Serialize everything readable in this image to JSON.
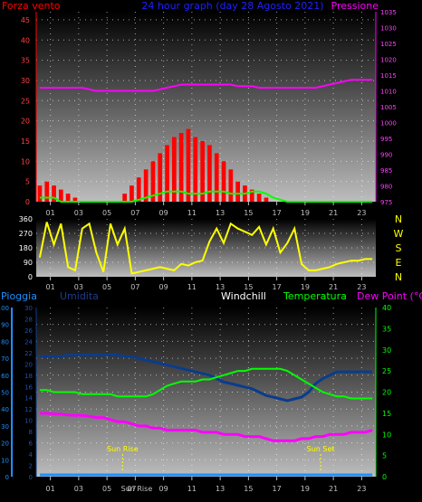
{
  "chart_data": [
    {
      "type": "line",
      "title": "24 hour graph (day  28 Agosto 2021)",
      "left_label": "Forza vento",
      "right_label": "Pressione",
      "x_ticks": [
        "01",
        "03",
        "05",
        "07",
        "09",
        "11",
        "13",
        "15",
        "17",
        "19",
        "21",
        "23"
      ],
      "y_left_ticks": [
        "0",
        "5",
        "10",
        "15",
        "20",
        "25",
        "30",
        "35",
        "40",
        "45"
      ],
      "y_right_ticks": [
        "975",
        "980",
        "985",
        "990",
        "995",
        "1000",
        "1005",
        "1010",
        "1015",
        "1020",
        "1025",
        "1030",
        "1035"
      ],
      "ylim_left": [
        0,
        47
      ],
      "ylim_right": [
        975,
        1035
      ],
      "grid": true,
      "colors": {
        "wind": "#ff0000",
        "gust": "#00ff00",
        "pressure": "#ff00ff",
        "title": "#2020ff"
      },
      "series": [
        {
          "values": [
            4,
            5,
            4,
            3,
            2,
            1,
            0,
            0,
            0,
            0,
            0,
            0,
            2,
            4,
            6,
            8,
            10,
            12,
            14,
            16,
            17,
            18,
            16,
            15,
            14,
            12,
            10,
            8,
            5,
            4,
            3,
            2,
            1,
            0,
            0,
            0,
            0,
            0,
            0,
            0,
            0,
            0,
            0,
            0,
            0,
            0,
            0,
            0
          ]
        },
        {
          "values": [
            1,
            1,
            1,
            0,
            0,
            0,
            0,
            0,
            0,
            0,
            0,
            0,
            0,
            0,
            0.5,
            1,
            1.5,
            2,
            2.5,
            2.5,
            2.5,
            2,
            2,
            2,
            2.5,
            2.5,
            2.5,
            2,
            2,
            2,
            2.5,
            2.5,
            2,
            1,
            0.5,
            0,
            0,
            0,
            0,
            0,
            0,
            0,
            0,
            0,
            0,
            0,
            0,
            0
          ]
        },
        {
          "values": [
            1011,
            1011,
            1011,
            1011,
            1011,
            1011,
            1011,
            1010.5,
            1010,
            1010,
            1010,
            1010,
            1010,
            1010,
            1010,
            1010,
            1010,
            1010.5,
            1011,
            1011.5,
            1012,
            1012,
            1012,
            1012,
            1012,
            1012,
            1012,
            1012,
            1011.5,
            1011.5,
            1011.5,
            1011,
            1011,
            1011,
            1011,
            1011,
            1011,
            1011,
            1011,
            1011,
            1011.5,
            1012,
            1012.5,
            1013,
            1013.5,
            1013.5,
            1013.5,
            1013.5
          ]
        }
      ]
    },
    {
      "type": "line",
      "x_ticks": [
        "01",
        "03",
        "05",
        "07",
        "09",
        "11",
        "13",
        "15",
        "17",
        "19",
        "21",
        "23"
      ],
      "y_ticks": [
        "0",
        "90",
        "180",
        "270",
        "360"
      ],
      "right_labels": [
        "N",
        "W",
        "S",
        "E",
        "N"
      ],
      "ylim": [
        0,
        360
      ],
      "grid": true,
      "colors": {
        "direction": "#ffff00"
      },
      "series": [
        {
          "values": [
            120,
            340,
            200,
            330,
            60,
            40,
            300,
            330,
            150,
            30,
            330,
            200,
            300,
            20,
            30,
            40,
            50,
            60,
            50,
            40,
            80,
            70,
            90,
            100,
            220,
            300,
            210,
            330,
            300,
            280,
            260,
            310,
            200,
            300,
            150,
            210,
            300,
            80,
            40,
            40,
            50,
            60,
            80,
            90,
            100,
            100,
            110,
            110
          ]
        }
      ]
    },
    {
      "type": "line",
      "x_ticks": [
        "01",
        "03",
        "05",
        "07",
        "09",
        "11",
        "13",
        "15",
        "17",
        "19",
        "21",
        "23"
      ],
      "x_tick_special": "Sun Rise",
      "headers": {
        "rain": "Pioggia",
        "humidity": "Umidita",
        "windchill": "Windchill",
        "temperature": "Temperatura",
        "dewpoint": "Dew Point (°C)"
      },
      "y_rain_ticks": [
        "0",
        "10",
        "20",
        "30",
        "40",
        "50",
        "60",
        "70",
        "80",
        "90",
        "100"
      ],
      "y_umid_ticks": [
        "0",
        "2",
        "4",
        "6",
        "8",
        "10",
        "12",
        "14",
        "16",
        "18",
        "20",
        "22",
        "24",
        "26",
        "28",
        "30"
      ],
      "y_temp_ticks": [
        "0",
        "5",
        "10",
        "15",
        "20",
        "25",
        "30",
        "35",
        "40"
      ],
      "ylim_humidity": [
        0,
        100
      ],
      "ylim_temperature": [
        0,
        40
      ],
      "annotations": [
        {
          "text": "Sun Rise",
          "x": 6.1
        },
        {
          "text": "Sun Set",
          "x": 20.1
        }
      ],
      "grid": true,
      "colors": {
        "rain": "#1e90ff",
        "humidity": "#0a3c8c",
        "windchill": "#ffffff",
        "temperature": "#00ff00",
        "dewpoint": "#ff00ff"
      },
      "series": [
        {
          "values": [
            71,
            71,
            71,
            71,
            72,
            72,
            72,
            72,
            72,
            72,
            72,
            72,
            71,
            71,
            70,
            69,
            68,
            67,
            66,
            65,
            64,
            63,
            62,
            61,
            60,
            58,
            56,
            55,
            54,
            53,
            52,
            50,
            48,
            47,
            46,
            45,
            46,
            47,
            50,
            55,
            58,
            60,
            62,
            62,
            62,
            62,
            62,
            62
          ]
        },
        {
          "values": [
            20.5,
            20.5,
            20,
            20,
            20,
            20,
            19.5,
            19.5,
            19.5,
            19.5,
            19.5,
            19,
            19,
            19,
            19,
            19,
            19.5,
            20.5,
            21.5,
            22,
            22.5,
            22.5,
            22.5,
            23,
            23,
            23.5,
            24,
            24.5,
            25,
            25,
            25.5,
            25.5,
            25.5,
            25.5,
            25.5,
            25,
            24,
            23,
            22,
            21,
            20,
            19.5,
            19,
            19,
            18.5,
            18.5,
            18.5,
            18.5
          ]
        },
        {
          "values": [
            15,
            15,
            14.8,
            14.8,
            14.6,
            14.5,
            14.5,
            14.3,
            14,
            14,
            13.5,
            13,
            13,
            12.5,
            12,
            12,
            11.5,
            11.5,
            11,
            11,
            11,
            11,
            11,
            10.5,
            10.5,
            10.5,
            10,
            10,
            10,
            9.5,
            9.5,
            9.5,
            9,
            8.5,
            8.5,
            8.5,
            8.5,
            9,
            9,
            9.5,
            9.5,
            10,
            10,
            10,
            10.5,
            10.5,
            10.5,
            11
          ]
        },
        {
          "values": [
            0,
            0,
            0,
            0,
            0,
            0,
            0,
            0,
            0,
            0,
            0,
            0,
            0,
            0,
            0,
            0,
            0,
            0,
            0,
            0,
            0,
            0,
            0,
            0,
            0,
            0,
            0,
            0,
            0,
            0,
            0,
            0,
            0,
            0,
            0,
            0,
            0,
            0,
            0,
            0,
            0,
            0,
            0,
            0,
            0,
            0,
            0,
            0
          ]
        }
      ]
    }
  ]
}
